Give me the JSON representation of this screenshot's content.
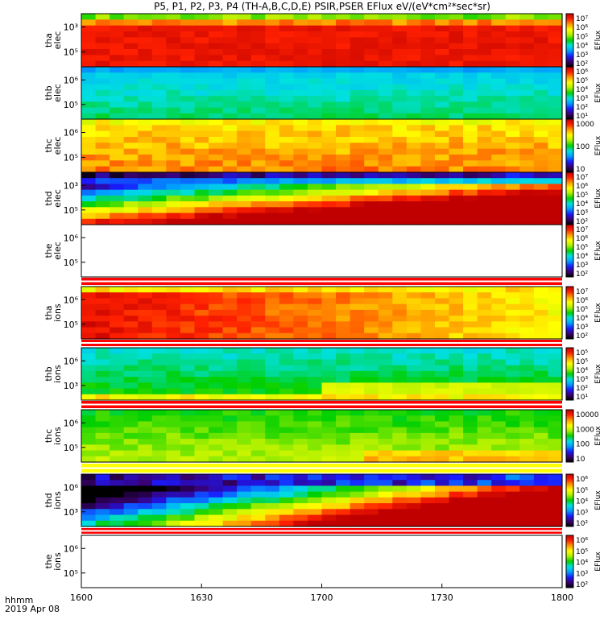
{
  "title": "P5, P1, P2, P3, P4 (TH-A,B,C,D,E) PSIR,PSER EFlux eV/(eV*cm²*sec*sr)",
  "x_caption_line1": "hhmm",
  "x_caption_line2": "2019 Apr 08",
  "chart_data": {
    "type": "heatmap",
    "title": "P5, P1, P2, P3, P4 (TH-A,B,C,D,E) PSIR,PSER EFlux eV/(eV*cm²*sec*sr)",
    "xlabel": "hhmm",
    "x_date": "2019 Apr 08",
    "x_ticks": [
      "1600",
      "1630",
      "1700",
      "1730",
      "1800"
    ],
    "x_range": [
      "1600",
      "1800"
    ],
    "y_scale": "log",
    "panels": [
      {
        "label": [
          "tha",
          "elec"
        ],
        "y_ticks": [
          "10³",
          "10⁵"
        ],
        "colorbar_ticks": [
          "10⁷",
          "10⁶",
          "10⁵",
          "10⁴",
          "10³",
          "10²"
        ],
        "colorbar_label": "EFlux",
        "pattern": "tha_elec"
      },
      {
        "label": [
          "thb",
          "elec"
        ],
        "y_ticks": [
          "10⁶",
          "10⁵"
        ],
        "colorbar_ticks": [
          "10⁶",
          "10⁵",
          "10⁴",
          "10³",
          "10²",
          "10¹"
        ],
        "colorbar_label": "EFlux",
        "pattern": "thb_elec"
      },
      {
        "label": [
          "thc",
          "elec"
        ],
        "y_ticks": [
          "10⁶",
          "10⁵"
        ],
        "colorbar_ticks": [
          "1000",
          "100",
          "10"
        ],
        "colorbar_label": "EFlux",
        "pattern": "thc_elec"
      },
      {
        "label": [
          "thd",
          "elec"
        ],
        "y_ticks": [
          "10³",
          "10⁵"
        ],
        "colorbar_ticks": [
          "10⁷",
          "10⁶",
          "10⁵",
          "10⁴",
          "10³",
          "10²"
        ],
        "colorbar_label": "EFlux",
        "pattern": "thd_elec"
      },
      {
        "label": [
          "the",
          "elec"
        ],
        "y_ticks": [
          "10⁶",
          "10⁵"
        ],
        "colorbar_ticks": [
          "10⁷",
          "10⁶",
          "10⁵",
          "10⁴",
          "10³",
          "10²"
        ],
        "colorbar_label": "EFlux",
        "pattern": "the_elec"
      },
      {
        "label": [
          "tha",
          "ions"
        ],
        "y_ticks": [
          "10⁶",
          "10⁵"
        ],
        "colorbar_ticks": [
          "10⁷",
          "10⁶",
          "10⁵",
          "10⁴",
          "10³",
          "10²"
        ],
        "colorbar_label": "EFlux",
        "pattern": "tha_ions"
      },
      {
        "label": [
          "thb",
          "ions"
        ],
        "y_ticks": [
          "10⁶",
          "10³"
        ],
        "colorbar_ticks": [
          "10⁵",
          "10⁵",
          "10⁴",
          "10³",
          "10²",
          "10¹"
        ],
        "colorbar_label": "EFlux",
        "pattern": "thb_ions"
      },
      {
        "label": [
          "thc",
          "ions"
        ],
        "y_ticks": [
          "10⁶",
          "10⁵"
        ],
        "colorbar_ticks": [
          "10000",
          "1000",
          "100",
          "10"
        ],
        "colorbar_label": "EFlux",
        "pattern": "thc_ions"
      },
      {
        "label": [
          "thd",
          "ions"
        ],
        "y_ticks": [
          "10⁶",
          "10³"
        ],
        "colorbar_ticks": [
          "10⁶",
          "10⁵",
          "10⁴",
          "10³",
          "10²"
        ],
        "colorbar_label": "EFlux",
        "pattern": "thd_ions"
      },
      {
        "label": [
          "the",
          "ions"
        ],
        "y_ticks": [
          "10⁶",
          "10⁵"
        ],
        "colorbar_ticks": [
          "10⁶",
          "10⁵",
          "10⁴",
          "10³",
          "10²"
        ],
        "colorbar_label": "EFlux",
        "pattern": "the_ions"
      }
    ],
    "colormap": [
      "#000000",
      "#3a0070",
      "#1a1aff",
      "#00a0ff",
      "#00e0e0",
      "#00d000",
      "#b0f000",
      "#ffff00",
      "#ff9a00",
      "#ff2000",
      "#c00000"
    ]
  }
}
